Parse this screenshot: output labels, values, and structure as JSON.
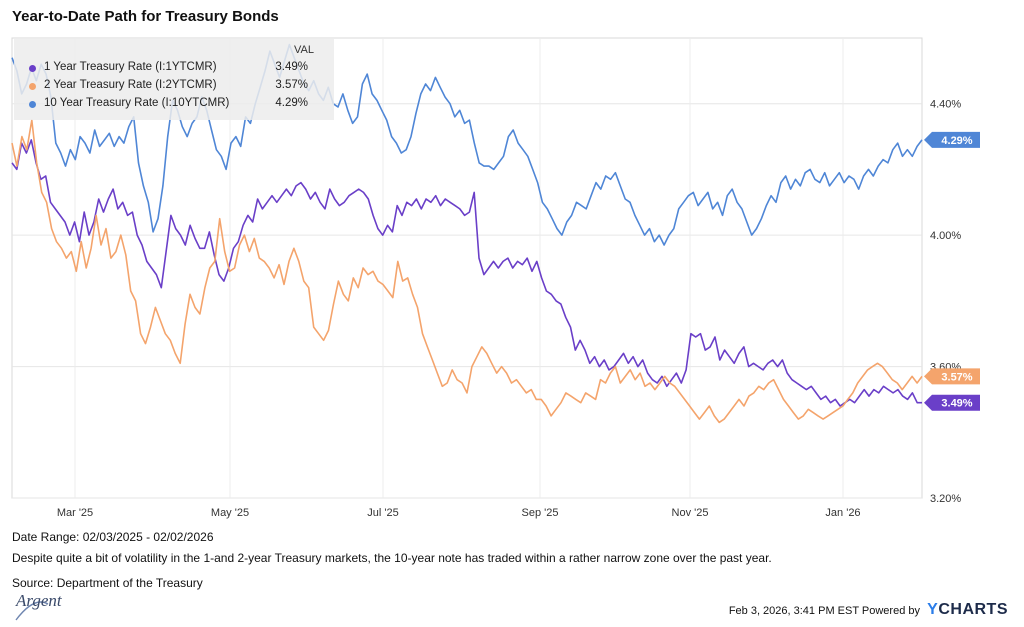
{
  "title": "Year-to-Date Path for Treasury Bonds",
  "legend": {
    "header": "VAL",
    "items": [
      {
        "name": "1 Year Treasury Rate (I:1YTCMR)",
        "value": "3.49%",
        "color": "#6a3fc8"
      },
      {
        "name": "2 Year Treasury Rate (I:2YTCMR)",
        "value": "3.57%",
        "color": "#f4a46c"
      },
      {
        "name": "10 Year Treasury Rate (I:10YTCMR)",
        "value": "4.29%",
        "color": "#4f86d6"
      }
    ]
  },
  "footer": {
    "date_range": "Date Range: 02/03/2025 - 02/02/2026",
    "description": "Despite quite a bit of volatility in the 1-and 2-year Treasury markets, the 10-year note has traded within a rather narrow zone over the past year.",
    "source": "Source: Department of the Treasury",
    "logo_text": "Argent",
    "timestamp": "Feb 3, 2026, 3:41 PM EST Powered by",
    "brand_y": "Y",
    "brand_rest": "CHARTS"
  },
  "chart_data": {
    "type": "line",
    "x_ticks": [
      "Mar '25",
      "May '25",
      "Jul '25",
      "Sep '25",
      "Nov '25",
      "Jan '26"
    ],
    "y_ticks": [
      "3.20%",
      "3.60%",
      "4.00%",
      "4.40%"
    ],
    "ylim": [
      3.2,
      4.6
    ],
    "grid": true,
    "legend_position": "top-left",
    "series": [
      {
        "name": "1 Year Treasury Rate (I:1YTCMR)",
        "color": "#6a3fc8",
        "end_label": "3.49%",
        "values": [
          4.22,
          4.2,
          4.28,
          4.25,
          4.29,
          4.22,
          4.17,
          4.18,
          4.1,
          4.08,
          4.06,
          4.04,
          4.0,
          4.04,
          3.98,
          4.07,
          4.0,
          4.04,
          4.11,
          4.07,
          4.11,
          4.14,
          4.08,
          4.1,
          4.06,
          4.07,
          4.0,
          3.97,
          3.92,
          3.9,
          3.88,
          3.84,
          3.95,
          4.06,
          4.02,
          4.0,
          3.97,
          4.03,
          3.99,
          3.96,
          3.96,
          4.01,
          3.94,
          3.88,
          3.86,
          3.9,
          3.96,
          3.98,
          4.03,
          4.06,
          4.04,
          4.11,
          4.08,
          4.1,
          4.12,
          4.1,
          4.12,
          4.14,
          4.12,
          4.15,
          4.16,
          4.14,
          4.11,
          4.13,
          4.1,
          4.08,
          4.14,
          4.11,
          4.09,
          4.1,
          4.12,
          4.13,
          4.14,
          4.13,
          4.11,
          4.06,
          4.02,
          4.0,
          4.03,
          4.01,
          4.09,
          4.06,
          4.1,
          4.09,
          4.11,
          4.08,
          4.11,
          4.1,
          4.12,
          4.09,
          4.11,
          4.1,
          4.09,
          4.08,
          4.06,
          4.07,
          4.13,
          3.93,
          3.88,
          3.9,
          3.92,
          3.9,
          3.92,
          3.93,
          3.9,
          3.92,
          3.91,
          3.93,
          3.89,
          3.92,
          3.87,
          3.83,
          3.82,
          3.8,
          3.79,
          3.75,
          3.72,
          3.65,
          3.68,
          3.65,
          3.61,
          3.63,
          3.6,
          3.62,
          3.59,
          3.6,
          3.62,
          3.64,
          3.61,
          3.63,
          3.6,
          3.62,
          3.58,
          3.56,
          3.55,
          3.57,
          3.54,
          3.56,
          3.58,
          3.55,
          3.59,
          3.7,
          3.69,
          3.7,
          3.65,
          3.66,
          3.69,
          3.62,
          3.65,
          3.63,
          3.61,
          3.64,
          3.66,
          3.6,
          3.61,
          3.6,
          3.59,
          3.61,
          3.62,
          3.6,
          3.62,
          3.58,
          3.56,
          3.55,
          3.54,
          3.53,
          3.54,
          3.52,
          3.5,
          3.51,
          3.49,
          3.5,
          3.48,
          3.49,
          3.5,
          3.49,
          3.51,
          3.53,
          3.51,
          3.53,
          3.52,
          3.54,
          3.53,
          3.52,
          3.53,
          3.51,
          3.5,
          3.52,
          3.49,
          3.49
        ]
      },
      {
        "name": "2 Year Treasury Rate (I:2YTCMR)",
        "color": "#f4a46c",
        "end_label": "3.57%",
        "values": [
          4.28,
          4.21,
          4.3,
          4.26,
          4.35,
          4.22,
          4.13,
          4.1,
          4.02,
          3.98,
          3.96,
          3.93,
          3.95,
          3.89,
          3.98,
          3.9,
          3.96,
          4.06,
          3.97,
          4.02,
          3.93,
          3.95,
          4.0,
          3.94,
          3.83,
          3.8,
          3.7,
          3.67,
          3.72,
          3.78,
          3.74,
          3.7,
          3.68,
          3.64,
          3.61,
          3.73,
          3.82,
          3.78,
          3.76,
          3.84,
          3.9,
          3.92,
          4.05,
          3.95,
          3.89,
          3.9,
          3.97,
          4.0,
          3.95,
          3.99,
          3.93,
          3.92,
          3.9,
          3.87,
          3.91,
          3.85,
          3.92,
          3.96,
          3.92,
          3.86,
          3.84,
          3.72,
          3.7,
          3.68,
          3.71,
          3.79,
          3.86,
          3.82,
          3.8,
          3.87,
          3.84,
          3.9,
          3.88,
          3.89,
          3.86,
          3.85,
          3.83,
          3.81,
          3.92,
          3.86,
          3.87,
          3.82,
          3.78,
          3.7,
          3.66,
          3.62,
          3.58,
          3.54,
          3.55,
          3.59,
          3.56,
          3.55,
          3.52,
          3.6,
          3.63,
          3.66,
          3.64,
          3.61,
          3.58,
          3.6,
          3.58,
          3.55,
          3.56,
          3.54,
          3.52,
          3.53,
          3.5,
          3.5,
          3.48,
          3.45,
          3.47,
          3.49,
          3.52,
          3.51,
          3.5,
          3.49,
          3.52,
          3.51,
          3.5,
          3.56,
          3.55,
          3.58,
          3.6,
          3.55,
          3.57,
          3.59,
          3.56,
          3.58,
          3.54,
          3.55,
          3.53,
          3.55,
          3.57,
          3.55,
          3.54,
          3.52,
          3.5,
          3.48,
          3.46,
          3.44,
          3.46,
          3.48,
          3.45,
          3.43,
          3.44,
          3.46,
          3.48,
          3.5,
          3.48,
          3.51,
          3.52,
          3.54,
          3.53,
          3.55,
          3.56,
          3.53,
          3.5,
          3.48,
          3.46,
          3.44,
          3.45,
          3.47,
          3.46,
          3.45,
          3.44,
          3.45,
          3.46,
          3.47,
          3.48,
          3.5,
          3.52,
          3.55,
          3.57,
          3.59,
          3.6,
          3.61,
          3.6,
          3.58,
          3.56,
          3.55,
          3.53,
          3.55,
          3.57,
          3.55,
          3.57
        ]
      },
      {
        "name": "10 Year Treasury Rate (I:10YTCMR)",
        "color": "#4f86d6",
        "end_label": "4.29%",
        "values": [
          4.54,
          4.5,
          4.43,
          4.46,
          4.51,
          4.47,
          4.52,
          4.49,
          4.42,
          4.28,
          4.25,
          4.21,
          4.26,
          4.23,
          4.3,
          4.28,
          4.25,
          4.32,
          4.27,
          4.29,
          4.31,
          4.27,
          4.3,
          4.28,
          4.33,
          4.36,
          4.22,
          4.15,
          4.1,
          4.01,
          4.05,
          4.15,
          4.3,
          4.41,
          4.38,
          4.33,
          4.3,
          4.34,
          4.36,
          4.42,
          4.38,
          4.32,
          4.26,
          4.24,
          4.2,
          4.28,
          4.3,
          4.27,
          4.36,
          4.34,
          4.4,
          4.45,
          4.5,
          4.56,
          4.52,
          4.48,
          4.53,
          4.58,
          4.54,
          4.5,
          4.46,
          4.44,
          4.47,
          4.43,
          4.41,
          4.45,
          4.4,
          4.39,
          4.43,
          4.38,
          4.34,
          4.36,
          4.46,
          4.49,
          4.43,
          4.41,
          4.38,
          4.35,
          4.3,
          4.28,
          4.25,
          4.26,
          4.3,
          4.37,
          4.43,
          4.46,
          4.44,
          4.48,
          4.45,
          4.42,
          4.4,
          4.36,
          4.38,
          4.34,
          4.35,
          4.28,
          4.22,
          4.21,
          4.21,
          4.2,
          4.22,
          4.24,
          4.3,
          4.32,
          4.28,
          4.26,
          4.24,
          4.2,
          4.16,
          4.1,
          4.08,
          4.05,
          4.02,
          4.0,
          4.04,
          4.06,
          4.1,
          4.09,
          4.08,
          4.12,
          4.16,
          4.14,
          4.18,
          4.17,
          4.19,
          4.15,
          4.11,
          4.1,
          4.06,
          4.03,
          4.0,
          4.02,
          3.98,
          4.0,
          3.97,
          4.0,
          4.02,
          4.08,
          4.1,
          4.12,
          4.13,
          4.09,
          4.11,
          4.13,
          4.08,
          4.1,
          4.06,
          4.12,
          4.14,
          4.1,
          4.08,
          4.04,
          4.0,
          4.02,
          4.05,
          4.09,
          4.12,
          4.1,
          4.16,
          4.18,
          4.14,
          4.17,
          4.15,
          4.19,
          4.2,
          4.17,
          4.16,
          4.19,
          4.15,
          4.17,
          4.19,
          4.16,
          4.18,
          4.17,
          4.14,
          4.18,
          4.2,
          4.18,
          4.21,
          4.23,
          4.22,
          4.26,
          4.28,
          4.24,
          4.26,
          4.24,
          4.27,
          4.29
        ]
      }
    ]
  }
}
